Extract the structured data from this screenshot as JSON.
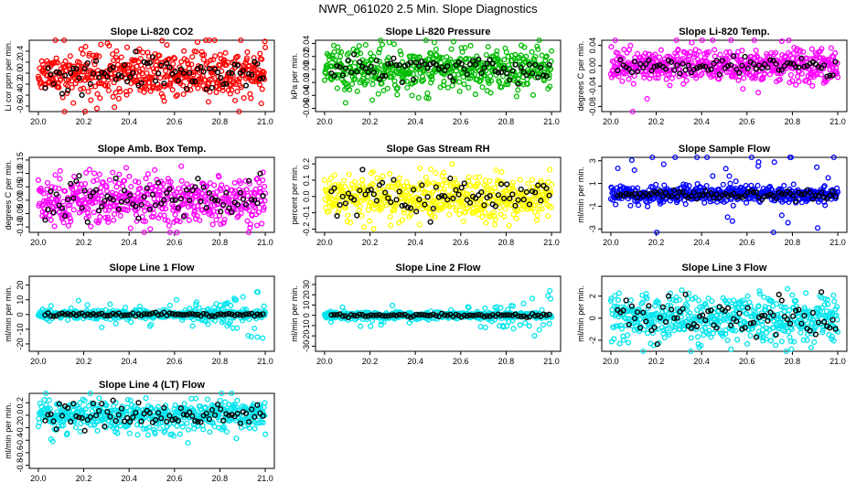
{
  "page": {
    "title": "NWR_061020  2.5 Min. Slope Diagnostics"
  },
  "colors": {
    "black": "#000000"
  },
  "chart_data": [
    {
      "type": "scatter",
      "title": "Slope Li-820 CO2",
      "ylabel": "Li cor ppm per min.",
      "xlabel": "",
      "color": "#ff0000",
      "xlim": [
        20.0,
        21.0
      ],
      "ylim": [
        -0.7,
        0.6
      ],
      "xticks": [
        "20.0",
        "20.2",
        "20.4",
        "20.6",
        "20.8",
        "21.0"
      ],
      "yticks": [
        -0.6,
        -0.4,
        -0.2,
        0.0,
        0.2,
        0.4
      ],
      "ytick_labels": [
        "-0.6",
        "-0.4",
        "-0.2",
        "0.0",
        "0.2",
        "0.4"
      ],
      "spread": 0.22,
      "black_spread": 0.18,
      "outlier_amp": 0.25,
      "trend": 0,
      "seed": 11
    },
    {
      "type": "scatter",
      "title": "Slope Li-820 Pressure",
      "ylabel": "kPa per min.",
      "xlabel": "",
      "color": "#00bb00",
      "xlim": [
        20.0,
        21.0
      ],
      "ylim": [
        -0.065,
        0.045
      ],
      "xticks": [
        "20.0",
        "20.2",
        "20.4",
        "20.6",
        "20.8",
        "21.0"
      ],
      "yticks": [
        -0.06,
        -0.04,
        -0.02,
        0.0,
        0.02,
        0.04
      ],
      "ytick_labels": [
        "-0.06",
        "-0.04",
        "-0.02",
        "0.00",
        "0.02",
        "0.04"
      ],
      "spread": 0.015,
      "black_spread": 0.01,
      "outlier_amp": 0.02,
      "trend": 0,
      "seed": 23
    },
    {
      "type": "scatter",
      "title": "Slope Li-820 Temp.",
      "ylabel": "degrees C per min.",
      "xlabel": "",
      "color": "#ff00ff",
      "xlim": [
        20.0,
        21.0
      ],
      "ylim": [
        -0.09,
        0.05
      ],
      "xticks": [
        "20.0",
        "20.2",
        "20.4",
        "20.6",
        "20.8",
        "21.0"
      ],
      "yticks": [
        -0.08,
        -0.04,
        0.0,
        0.04
      ],
      "ytick_labels": [
        "-0.08",
        "-0.04",
        "0.00",
        "0.04"
      ],
      "spread": 0.015,
      "black_spread": 0.01,
      "outlier_amp": 0.04,
      "trend": 0,
      "seed": 37
    },
    {
      "type": "scatter",
      "title": "Slope Amb. Box Temp.",
      "ylabel": "degrees C per min.",
      "xlabel": "",
      "color": "#ff00ff",
      "xlim": [
        20.0,
        21.0
      ],
      "ylim": [
        -0.12,
        0.16
      ],
      "xticks": [
        "20.0",
        "20.2",
        "20.4",
        "20.6",
        "20.8",
        "21.0"
      ],
      "yticks": [
        -0.1,
        -0.05,
        0.0,
        0.05,
        0.1,
        0.15
      ],
      "ytick_labels": [
        "-0.10",
        "-0.05",
        "0.00",
        "0.05",
        "0.10",
        "0.15"
      ],
      "spread": 0.045,
      "black_spread": 0.04,
      "outlier_amp": 0.05,
      "trend": 0,
      "seed": 41
    },
    {
      "type": "scatter",
      "title": "Slope Gas Stream RH",
      "ylabel": "percent per min.",
      "xlabel": "",
      "color": "#ffff00",
      "xlim": [
        20.0,
        21.0
      ],
      "ylim": [
        -0.22,
        0.24
      ],
      "xticks": [
        "20.0",
        "20.2",
        "20.4",
        "20.6",
        "20.8",
        "21.0"
      ],
      "yticks": [
        -0.2,
        -0.1,
        0.0,
        0.1,
        0.2
      ],
      "ytick_labels": [
        "-0.2",
        "-0.1",
        "0.0",
        "0.1",
        "0.2"
      ],
      "spread": 0.07,
      "black_spread": 0.06,
      "outlier_amp": 0.08,
      "trend": 0,
      "seed": 53
    },
    {
      "type": "scatter",
      "title": "Slope Sample Flow",
      "ylabel": "ml/min per min.",
      "xlabel": "",
      "color": "#0000ff",
      "xlim": [
        20.0,
        21.0
      ],
      "ylim": [
        -3.3,
        3.3
      ],
      "xticks": [
        "20.0",
        "20.2",
        "20.4",
        "20.6",
        "20.8",
        "21.0"
      ],
      "yticks": [
        -3,
        -1,
        1,
        3
      ],
      "ytick_labels": [
        "-3",
        "-1",
        "1",
        "3"
      ],
      "spread": 0.35,
      "black_spread": 0.2,
      "outlier_amp": 1.8,
      "trend": 0,
      "seed": 67
    },
    {
      "type": "scatter",
      "title": "Slope Line 1 Flow",
      "ylabel": "ml/min per min.",
      "xlabel": "",
      "color": "#00e5ee",
      "xlim": [
        20.0,
        21.0
      ],
      "ylim": [
        -25,
        26
      ],
      "xticks": [
        "20.0",
        "20.2",
        "20.4",
        "20.6",
        "20.8",
        "21.0"
      ],
      "yticks": [
        -20,
        -10,
        0,
        10,
        20
      ],
      "ytick_labels": [
        "-20",
        "-10",
        "0",
        "10",
        "20"
      ],
      "spread": 1.5,
      "black_spread": 0.6,
      "outlier_amp": 4,
      "trend": 18,
      "seed": 71
    },
    {
      "type": "scatter",
      "title": "Slope Line 2 Flow",
      "ylabel": "ml/min per min.",
      "xlabel": "",
      "color": "#00e5ee",
      "xlim": [
        20.0,
        21.0
      ],
      "ylim": [
        -35,
        38
      ],
      "xticks": [
        "20.0",
        "20.2",
        "20.4",
        "20.6",
        "20.8",
        "21.0"
      ],
      "yticks": [
        -30,
        -20,
        -10,
        0,
        10,
        20,
        30
      ],
      "ytick_labels": [
        "-30",
        "-20",
        "-10",
        "0",
        "10",
        "20",
        "30"
      ],
      "spread": 1.5,
      "black_spread": 0.8,
      "outlier_amp": 5,
      "trend": 25,
      "seed": 83
    },
    {
      "type": "scatter",
      "title": "Slope Line 3 Flow",
      "ylabel": "ml/min per min.",
      "xlabel": "",
      "color": "#00e5ee",
      "xlim": [
        20.0,
        21.0
      ],
      "ylim": [
        -3,
        3.8
      ],
      "xticks": [
        "20.0",
        "20.2",
        "20.4",
        "20.6",
        "20.8",
        "21.0"
      ],
      "yticks": [
        -2,
        0,
        2
      ],
      "ytick_labels": [
        "-2",
        "0",
        "2"
      ],
      "spread": 1.1,
      "black_spread": 0.9,
      "outlier_amp": 1.0,
      "trend": 0,
      "seed": 97
    },
    {
      "type": "scatter",
      "title": "Slope Line 4 (LT) Flow",
      "ylabel": "ml/min per min.",
      "xlabel": "",
      "color": "#00e5ee",
      "xlim": [
        20.0,
        21.0
      ],
      "ylim": [
        -0.85,
        0.35
      ],
      "xticks": [
        "20.0",
        "20.2",
        "20.4",
        "20.6",
        "20.8",
        "21.0"
      ],
      "yticks": [
        -0.8,
        -0.6,
        -0.4,
        -0.2,
        0.0,
        0.2
      ],
      "ytick_labels": [
        "-0.8",
        "-0.6",
        "-0.4",
        "-0.2",
        "0.0",
        "0.2"
      ],
      "spread": 0.12,
      "black_spread": 0.1,
      "outlier_amp": 0.2,
      "trend": 0,
      "seed": 101
    }
  ]
}
